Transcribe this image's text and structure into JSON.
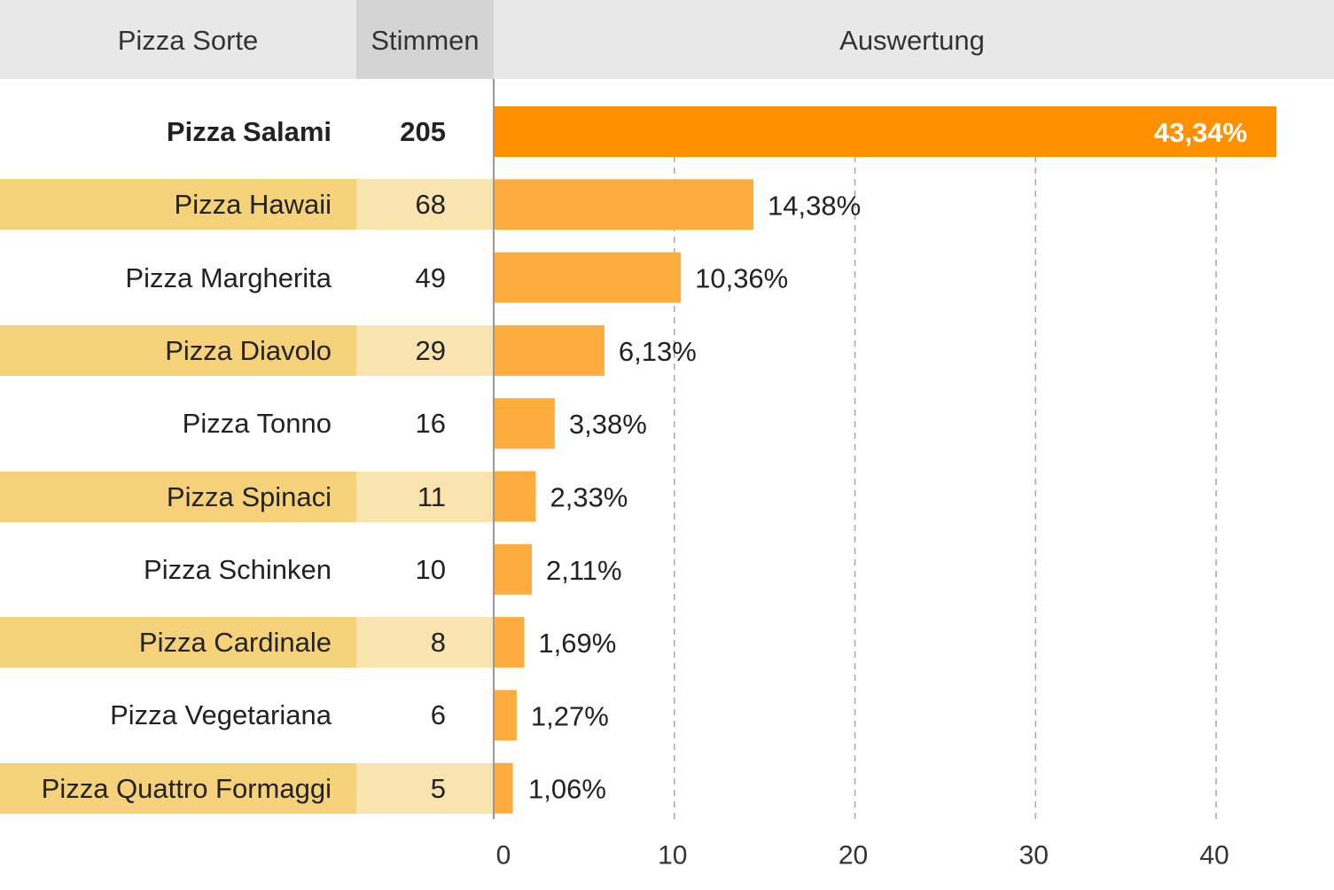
{
  "header": {
    "col_name": "Pizza Sorte",
    "col_votes": "Stimmen",
    "col_chart": "Auswertung"
  },
  "colors": {
    "highlight_bar": "#ff9000",
    "bar": "#ffac3e",
    "band_name": "#f5d27a",
    "band_votes": "#f9e4b0"
  },
  "chart_data": {
    "type": "bar",
    "title": "Auswertung",
    "categories": [
      "Pizza Salami",
      "Pizza Hawaii",
      "Pizza Margherita",
      "Pizza Diavolo",
      "Pizza Tonno",
      "Pizza Spinaci",
      "Pizza Schinken",
      "Pizza Cardinale",
      "Pizza Vegetariana",
      "Pizza Quattro Formaggi"
    ],
    "votes": [
      "205",
      "68",
      "49",
      "29",
      "16",
      "11",
      "10",
      "8",
      "6",
      "5"
    ],
    "values": [
      43.34,
      14.38,
      10.36,
      6.13,
      3.38,
      2.33,
      2.11,
      1.69,
      1.27,
      1.06
    ],
    "value_labels": [
      "43,34%",
      "14,38%",
      "10,36%",
      "6,13%",
      "3,38%",
      "2,33%",
      "2,11%",
      "1,69%",
      "1,27%",
      "1,06%"
    ],
    "xlim": [
      0,
      42.5
    ],
    "xticks": [
      0,
      10,
      20,
      30,
      40
    ],
    "xtick_labels": [
      "0",
      "10",
      "20",
      "30",
      "40"
    ],
    "grid": "vertical dashed",
    "orientation": "horizontal"
  }
}
